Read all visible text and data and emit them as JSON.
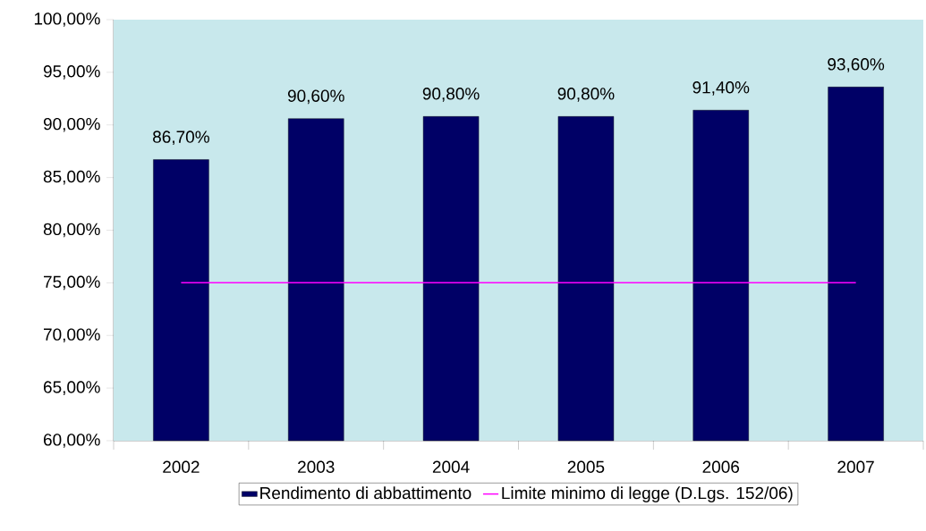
{
  "chart_data": {
    "type": "bar",
    "categories": [
      "2002",
      "2003",
      "2004",
      "2005",
      "2006",
      "2007"
    ],
    "series": [
      {
        "name": "Rendimento di abbattimento",
        "color": "#000066",
        "values": [
          86.7,
          90.6,
          90.8,
          90.8,
          91.4,
          93.6
        ],
        "value_labels": [
          "86,70%",
          "90,60%",
          "90,80%",
          "90,80%",
          "91,40%",
          "93,60%"
        ]
      },
      {
        "name": "Limite minimo di legge (D.Lgs. 152/06)",
        "type": "line",
        "color": "#ff00ff",
        "values": [
          75,
          75,
          75,
          75,
          75,
          75
        ]
      }
    ],
    "ylim": [
      60,
      100
    ],
    "yticks": [
      {
        "value": 60,
        "label": "60,00%"
      },
      {
        "value": 65,
        "label": "65,00%"
      },
      {
        "value": 70,
        "label": "70,00%"
      },
      {
        "value": 75,
        "label": "75,00%"
      },
      {
        "value": 80,
        "label": "80,00%"
      },
      {
        "value": 85,
        "label": "85,00%"
      },
      {
        "value": 90,
        "label": "90,00%"
      },
      {
        "value": 95,
        "label": "95,00%"
      },
      {
        "value": 100,
        "label": "100,00%"
      }
    ],
    "legend": "bottom"
  }
}
